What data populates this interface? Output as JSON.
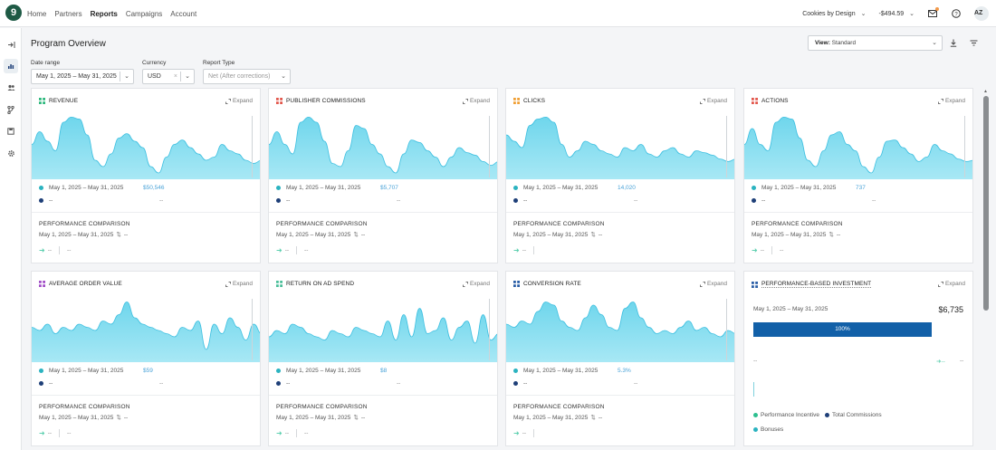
{
  "nav": {
    "items": [
      "Home",
      "Partners",
      "Reports",
      "Campaigns",
      "Account"
    ],
    "active": "Reports",
    "logo": "9",
    "account_name": "Cookies by Design",
    "balance": "-$494.59",
    "avatar_initials": "AZ"
  },
  "page": {
    "title": "Program Overview",
    "view_prefix": "View:",
    "view_value": "Standard"
  },
  "filters": {
    "date_label": "Date range",
    "date_value": "May 1, 2025 – May 31, 2025",
    "currency_label": "Currency",
    "currency_value": "USD",
    "report_label": "Report Type",
    "report_value": "Net (After corrections)"
  },
  "colors": {
    "area_fill": "#6fd6ec",
    "area_stroke": "#3cbfe0",
    "teal": "#2bb3c0",
    "navy": "#1e3f78",
    "bar": "#1260a8",
    "arrow": "#5fd0b0"
  },
  "expand_label": "Expand",
  "cards": [
    {
      "title": "REVENUE",
      "icon_color": "#2db87d",
      "range": "May 1, 2025 – May 31, 2025",
      "value": "$50,546",
      "dash": "--",
      "perf_title": "PERFORMANCE COMPARISON",
      "perf_range": "May 1, 2025 – May 31, 2025",
      "perf_dash": "--",
      "foot_left": "--",
      "foot_right": "--",
      "series": [
        0.55,
        0.75,
        0.6,
        0.45,
        0.9,
        0.98,
        0.95,
        0.7,
        0.3,
        0.2,
        0.4,
        0.65,
        0.72,
        0.6,
        0.5,
        0.2,
        0.1,
        0.35,
        0.55,
        0.62,
        0.5,
        0.4,
        0.3,
        0.35,
        0.55,
        0.45,
        0.4,
        0.3,
        0.25,
        0.3
      ]
    },
    {
      "title": "PUBLISHER COMMISSIONS",
      "icon_color": "#e2574c",
      "range": "May 1, 2025 – May 31, 2025",
      "value": "$5,707",
      "dash": "--",
      "perf_title": "PERFORMANCE COMPARISON",
      "perf_range": "May 1, 2025 – May 31, 2025",
      "perf_dash": "--",
      "foot_left": "--",
      "foot_right": "--",
      "series": [
        0.55,
        0.75,
        0.55,
        0.4,
        0.9,
        0.98,
        0.9,
        0.6,
        0.25,
        0.2,
        0.45,
        0.85,
        0.8,
        0.55,
        0.4,
        0.2,
        0.1,
        0.4,
        0.62,
        0.58,
        0.45,
        0.35,
        0.2,
        0.35,
        0.5,
        0.42,
        0.38,
        0.28,
        0.22,
        0.28
      ]
    },
    {
      "title": "CLICKS",
      "icon_color": "#f0a035",
      "range": "May 1, 2025 – May 31, 2025",
      "value": "14,020",
      "dash": "--",
      "perf_title": "PERFORMANCE COMPARISON",
      "perf_range": "May 1, 2025 – May 31, 2025",
      "perf_dash": "--",
      "foot_left": "--",
      "foot_right": "",
      "series": [
        0.7,
        0.6,
        0.5,
        0.85,
        0.95,
        0.98,
        0.9,
        0.55,
        0.35,
        0.45,
        0.6,
        0.55,
        0.45,
        0.4,
        0.35,
        0.5,
        0.45,
        0.55,
        0.4,
        0.35,
        0.45,
        0.5,
        0.4,
        0.35,
        0.45,
        0.42,
        0.38,
        0.32,
        0.28,
        0.32
      ]
    },
    {
      "title": "ACTIONS",
      "icon_color": "#e2574c",
      "range": "May 1, 2025 – May 31, 2025",
      "value": "737",
      "dash": "--",
      "perf_title": "PERFORMANCE COMPARISON",
      "perf_range": "May 1, 2025 – May 31, 2025",
      "perf_dash": "--",
      "foot_left": "--",
      "foot_right": "--",
      "series": [
        0.55,
        0.8,
        0.55,
        0.45,
        0.9,
        0.98,
        0.95,
        0.65,
        0.3,
        0.2,
        0.45,
        0.7,
        0.75,
        0.55,
        0.45,
        0.2,
        0.1,
        0.35,
        0.6,
        0.62,
        0.5,
        0.4,
        0.28,
        0.35,
        0.55,
        0.45,
        0.4,
        0.32,
        0.28,
        0.3
      ]
    },
    {
      "title": "AVERAGE ORDER VALUE",
      "icon_color": "#a24fc7",
      "range": "May 1, 2025 – May 31, 2025",
      "value": "$59",
      "dash": "--",
      "perf_title": "PERFORMANCE COMPARISON",
      "perf_range": "May 1, 2025 – May 31, 2025",
      "perf_dash": "--",
      "foot_left": "--",
      "foot_right": "--",
      "series": [
        0.55,
        0.5,
        0.6,
        0.45,
        0.55,
        0.5,
        0.6,
        0.55,
        0.5,
        0.65,
        0.6,
        0.75,
        0.95,
        0.7,
        0.6,
        0.55,
        0.5,
        0.45,
        0.4,
        0.55,
        0.5,
        0.65,
        0.2,
        0.6,
        0.45,
        0.7,
        0.55,
        0.35,
        0.6,
        0.45
      ]
    },
    {
      "title": "RETURN ON AD SPEND",
      "icon_color": "#4bbf9a",
      "range": "May 1, 2025 – May 31, 2025",
      "value": "$8",
      "dash": "--",
      "perf_title": "PERFORMANCE COMPARISON",
      "perf_range": "May 1, 2025 – May 31, 2025",
      "perf_dash": "--",
      "foot_left": "--",
      "foot_right": "--",
      "series": [
        0.4,
        0.5,
        0.45,
        0.6,
        0.55,
        0.45,
        0.4,
        0.35,
        0.5,
        0.45,
        0.4,
        0.55,
        0.5,
        0.45,
        0.4,
        0.65,
        0.35,
        0.75,
        0.4,
        0.85,
        0.45,
        0.5,
        0.7,
        0.35,
        0.55,
        0.65,
        0.3,
        0.75,
        0.35,
        0.45
      ]
    },
    {
      "title": "CONVERSION RATE",
      "icon_color": "#2a5ea6",
      "range": "May 1, 2025 – May 31, 2025",
      "value": "5.3%",
      "dash": "--",
      "perf_title": "PERFORMANCE COMPARISON",
      "perf_range": "May 1, 2025 – May 31, 2025",
      "perf_dash": "--",
      "foot_left": "--",
      "foot_right": "",
      "series": [
        0.6,
        0.55,
        0.65,
        0.6,
        0.8,
        0.95,
        0.9,
        0.65,
        0.55,
        0.5,
        0.7,
        0.9,
        0.75,
        0.55,
        0.5,
        0.85,
        0.95,
        0.7,
        0.55,
        0.45,
        0.5,
        0.45,
        0.55,
        0.65,
        0.5,
        0.55,
        0.45,
        0.4,
        0.5,
        0.45
      ]
    }
  ],
  "investment": {
    "title": "PERFORMANCE-BASED INVESTMENT",
    "icon_color": "#2a5ea6",
    "range": "May 1, 2025 – May 31, 2025",
    "amount": "$6,735",
    "bar_percent": 100,
    "bar_label": "100%",
    "dash_left": "--",
    "arrow_dash": "--",
    "dash_right": "--",
    "legend": [
      "Performance Incentive",
      "Total Commissions",
      "Bonuses"
    ]
  }
}
